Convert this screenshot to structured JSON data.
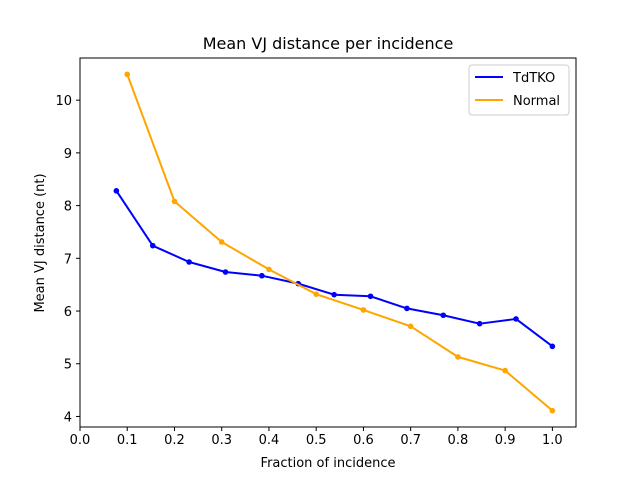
{
  "chart_data": {
    "type": "line",
    "title": "Mean VJ distance per incidence",
    "xlabel": "Fraction of incidence",
    "ylabel": "Mean VJ distance (nt)",
    "xlim": [
      0.0,
      1.05
    ],
    "ylim": [
      3.8,
      10.8
    ],
    "xticks": [
      0.0,
      0.1,
      0.2,
      0.3,
      0.4,
      0.5,
      0.6,
      0.7,
      0.8,
      0.9,
      1.0
    ],
    "xtick_labels": [
      "0.0",
      "0.1",
      "0.2",
      "0.3",
      "0.4",
      "0.5",
      "0.6",
      "0.7",
      "0.8",
      "0.9",
      "1.0"
    ],
    "yticks": [
      4,
      5,
      6,
      7,
      8,
      9,
      10
    ],
    "ytick_labels": [
      "4",
      "5",
      "6",
      "7",
      "8",
      "9",
      "10"
    ],
    "grid": false,
    "legend_position": "top-right",
    "series": [
      {
        "name": "TdTKO",
        "color": "#0000ff",
        "x": [
          0.077,
          0.154,
          0.231,
          0.308,
          0.385,
          0.462,
          0.538,
          0.615,
          0.692,
          0.769,
          0.846,
          0.923,
          1.0
        ],
        "y": [
          8.28,
          7.24,
          6.93,
          6.74,
          6.67,
          6.52,
          6.31,
          6.28,
          6.05,
          5.92,
          5.76,
          5.85,
          5.33
        ]
      },
      {
        "name": "Normal",
        "color": "#ffa500",
        "x": [
          0.1,
          0.2,
          0.3,
          0.4,
          0.5,
          0.6,
          0.7,
          0.8,
          0.9,
          1.0
        ],
        "y": [
          10.49,
          8.08,
          7.31,
          6.79,
          6.32,
          6.02,
          5.71,
          5.13,
          4.87,
          4.11
        ]
      }
    ]
  }
}
